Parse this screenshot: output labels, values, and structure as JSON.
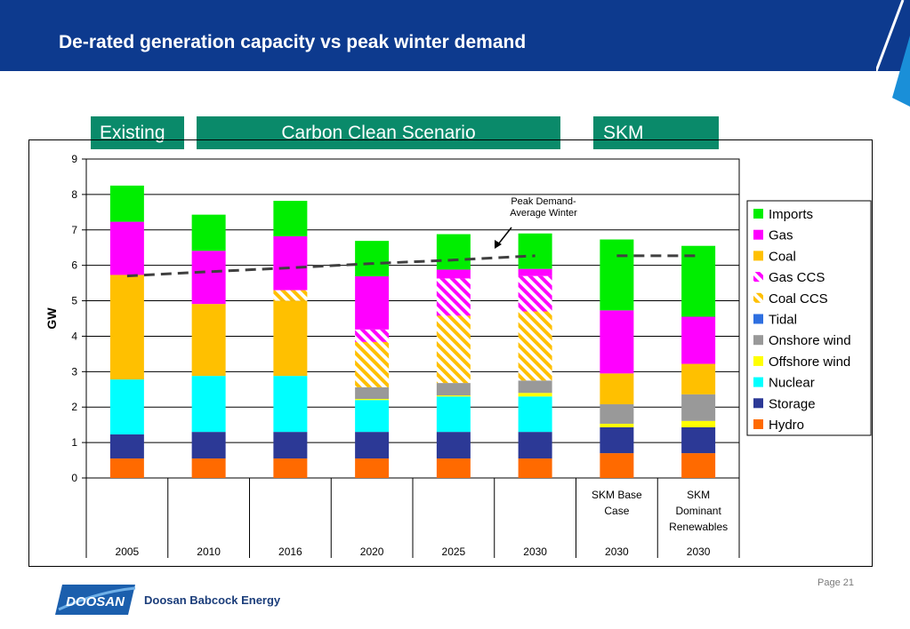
{
  "slide": {
    "title": "De-rated generation capacity vs peak winter demand",
    "page_label": "Page 21",
    "company_logo_text": "DOOSAN",
    "company_name": "Doosan Babcock Energy"
  },
  "scenario_labels": {
    "existing": "Existing",
    "carbon_clean": "Carbon Clean Scenario",
    "skm": "SKM"
  },
  "colors": {
    "header": "#0d3a8e",
    "scenario_box": "#0a8a6a",
    "peak_line": "#404040"
  },
  "chart_data": {
    "type": "bar",
    "stacked": true,
    "ylabel": "GW",
    "ylim": [
      0,
      9
    ],
    "yticks": [
      0,
      1,
      2,
      3,
      4,
      5,
      6,
      7,
      8,
      9
    ],
    "grid": true,
    "legend_position": "right",
    "categories": [
      "2005",
      "2010",
      "2016",
      "2020",
      "2025",
      "2030",
      "2030",
      "2030"
    ],
    "category_sublabels": [
      "",
      "",
      "",
      "",
      "",
      "",
      "SKM Base Case",
      "SKM Dominant Renewables"
    ],
    "series": [
      {
        "name": "Hydro",
        "color": "#ff6a00",
        "pattern": "solid",
        "values": [
          0.55,
          0.55,
          0.55,
          0.55,
          0.55,
          0.55,
          0.7,
          0.7
        ]
      },
      {
        "name": "Storage",
        "color": "#2c3996",
        "pattern": "solid",
        "values": [
          0.68,
          0.75,
          0.75,
          0.75,
          0.75,
          0.75,
          0.73,
          0.73
        ]
      },
      {
        "name": "Nuclear",
        "color": "#00ffff",
        "pattern": "solid",
        "values": [
          1.55,
          1.58,
          1.58,
          0.9,
          1.0,
          1.0,
          0.0,
          0.0
        ]
      },
      {
        "name": "Offshore wind",
        "color": "#ffff00",
        "pattern": "solid",
        "values": [
          0.0,
          0.0,
          0.0,
          0.03,
          0.03,
          0.1,
          0.1,
          0.18
        ]
      },
      {
        "name": "Onshore wind",
        "color": "#999999",
        "pattern": "solid",
        "values": [
          0.0,
          0.0,
          0.0,
          0.33,
          0.35,
          0.35,
          0.55,
          0.75
        ]
      },
      {
        "name": "Tidal",
        "color": "#2e6fe0",
        "pattern": "solid",
        "values": [
          0.0,
          0.0,
          0.0,
          0.0,
          0.0,
          0.0,
          0.0,
          0.0
        ]
      },
      {
        "name": "Coal",
        "color": "#ffc000",
        "pattern": "solid",
        "values": [
          2.95,
          2.03,
          2.12,
          0.0,
          0.0,
          0.0,
          0.87,
          0.86
        ]
      },
      {
        "name": "Coal CCS",
        "color": "#ffc000",
        "pattern": "hatch",
        "values": [
          0.0,
          0.0,
          0.3,
          1.28,
          1.9,
          1.95,
          0.0,
          0.0
        ]
      },
      {
        "name": "Gas CCS",
        "color": "#ff00ff",
        "pattern": "hatch",
        "values": [
          0.0,
          0.0,
          0.0,
          0.35,
          1.05,
          1.0,
          0.0,
          0.0
        ]
      },
      {
        "name": "Gas",
        "color": "#ff00ff",
        "pattern": "solid",
        "values": [
          1.5,
          1.5,
          1.52,
          1.5,
          0.25,
          0.2,
          1.78,
          1.33
        ]
      },
      {
        "name": "Imports",
        "color": "#00ee00",
        "pattern": "solid",
        "values": [
          1.02,
          1.02,
          1.0,
          1.0,
          1.0,
          1.0,
          2.0,
          2.0
        ]
      }
    ],
    "legend_order": [
      "Imports",
      "Gas",
      "Coal",
      "Gas CCS",
      "Coal CCS",
      "Tidal",
      "Onshore wind",
      "Offshore wind",
      "Nuclear",
      "Storage",
      "Hydro"
    ],
    "peak_demand": {
      "name": "Peak Demand-Average Winter",
      "label_lines": [
        "Peak Demand-",
        "Average Winter"
      ],
      "values": [
        5.7,
        5.82,
        5.93,
        6.05,
        6.15,
        6.27,
        6.27,
        6.27
      ]
    }
  }
}
